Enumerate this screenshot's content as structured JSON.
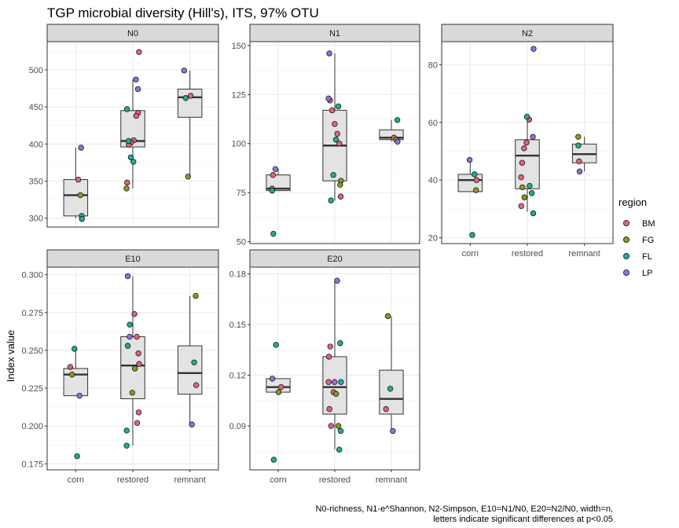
{
  "title": "TGP microbial diversity (Hill's), ITS, 97% OTU",
  "ylabel": "Index value",
  "caption_lines": [
    "N0-richness, N1-e^Shannon, N2-Simpson, E10=N1/N0, E20=N2/N0, width=n,",
    "letters indicate significant differences at p<0.05"
  ],
  "legend": {
    "title": "region",
    "entries": [
      {
        "label": "BM",
        "color": "#E2637A"
      },
      {
        "label": "FG",
        "color": "#8A9A1B"
      },
      {
        "label": "FL",
        "color": "#1FAE94"
      },
      {
        "label": "LP",
        "color": "#8B73E4"
      }
    ]
  },
  "chart_data": {
    "type": "boxplot",
    "categories": [
      "corn",
      "restored",
      "remnant"
    ],
    "panels": [
      {
        "name": "N0",
        "ylim": [
          288,
          538
        ],
        "yticks": [
          300,
          350,
          400,
          450,
          500
        ],
        "boxes": [
          {
            "category": "corn",
            "q1": 303,
            "median": 331,
            "q3": 352,
            "whisker_low": 300,
            "whisker_high": 395
          },
          {
            "category": "restored",
            "q1": 396,
            "median": 404,
            "q3": 445,
            "whisker_low": 340,
            "whisker_high": 487
          },
          {
            "category": "remnant",
            "q1": 436,
            "median": 463,
            "q3": 474,
            "whisker_low": 356,
            "whisker_high": 499
          }
        ],
        "points": [
          {
            "category": "corn",
            "region": "BM",
            "value": 352
          },
          {
            "category": "corn",
            "region": "FG",
            "value": 331
          },
          {
            "category": "corn",
            "region": "FL",
            "value": 303
          },
          {
            "category": "corn",
            "region": "FL",
            "value": 299
          },
          {
            "category": "corn",
            "region": "LP",
            "value": 395
          },
          {
            "category": "restored",
            "region": "BM",
            "value": 524
          },
          {
            "category": "restored",
            "region": "BM",
            "value": 442
          },
          {
            "category": "restored",
            "region": "BM",
            "value": 438
          },
          {
            "category": "restored",
            "region": "BM",
            "value": 405
          },
          {
            "category": "restored",
            "region": "BM",
            "value": 402
          },
          {
            "category": "restored",
            "region": "BM",
            "value": 399
          },
          {
            "category": "restored",
            "region": "BM",
            "value": 348
          },
          {
            "category": "restored",
            "region": "FG",
            "value": 340
          },
          {
            "category": "restored",
            "region": "FL",
            "value": 447
          },
          {
            "category": "restored",
            "region": "FL",
            "value": 404
          },
          {
            "category": "restored",
            "region": "FL",
            "value": 382
          },
          {
            "category": "restored",
            "region": "FL",
            "value": 376
          },
          {
            "category": "restored",
            "region": "LP",
            "value": 487
          },
          {
            "category": "restored",
            "region": "LP",
            "value": 474
          },
          {
            "category": "remnant",
            "region": "BM",
            "value": 465
          },
          {
            "category": "remnant",
            "region": "FG",
            "value": 356
          },
          {
            "category": "remnant",
            "region": "FL",
            "value": 462
          },
          {
            "category": "remnant",
            "region": "LP",
            "value": 499
          }
        ]
      },
      {
        "name": "N1",
        "ylim": [
          49,
          152
        ],
        "yticks": [
          50,
          75,
          100,
          125,
          150
        ],
        "boxes": [
          {
            "category": "corn",
            "q1": 76,
            "median": 77,
            "q3": 84,
            "whisker_low": 76,
            "whisker_high": 87
          },
          {
            "category": "restored",
            "q1": 81,
            "median": 99,
            "q3": 117,
            "whisker_low": 71,
            "whisker_high": 146
          },
          {
            "category": "remnant",
            "q1": 102,
            "median": 103,
            "q3": 107,
            "whisker_low": 101,
            "whisker_high": 112
          }
        ],
        "points": [
          {
            "category": "corn",
            "region": "BM",
            "value": 84
          },
          {
            "category": "corn",
            "region": "FG",
            "value": 77
          },
          {
            "category": "corn",
            "region": "FL",
            "value": 76
          },
          {
            "category": "corn",
            "region": "FL",
            "value": 54
          },
          {
            "category": "corn",
            "region": "LP",
            "value": 87
          },
          {
            "category": "restored",
            "region": "BM",
            "value": 122
          },
          {
            "category": "restored",
            "region": "BM",
            "value": 117
          },
          {
            "category": "restored",
            "region": "BM",
            "value": 110
          },
          {
            "category": "restored",
            "region": "BM",
            "value": 105
          },
          {
            "category": "restored",
            "region": "BM",
            "value": 100
          },
          {
            "category": "restored",
            "region": "BM",
            "value": 73
          },
          {
            "category": "restored",
            "region": "FG",
            "value": 81
          },
          {
            "category": "restored",
            "region": "FG",
            "value": 79
          },
          {
            "category": "restored",
            "region": "FL",
            "value": 119
          },
          {
            "category": "restored",
            "region": "FL",
            "value": 102
          },
          {
            "category": "restored",
            "region": "FL",
            "value": 84
          },
          {
            "category": "restored",
            "region": "FL",
            "value": 71
          },
          {
            "category": "restored",
            "region": "LP",
            "value": 146
          },
          {
            "category": "restored",
            "region": "LP",
            "value": 123
          },
          {
            "category": "remnant",
            "region": "BM",
            "value": 103
          },
          {
            "category": "remnant",
            "region": "FG",
            "value": 102
          },
          {
            "category": "remnant",
            "region": "FL",
            "value": 112
          },
          {
            "category": "remnant",
            "region": "LP",
            "value": 101
          }
        ]
      },
      {
        "name": "N2",
        "ylim": [
          18,
          88
        ],
        "yticks": [
          20,
          40,
          60,
          80
        ],
        "boxes": [
          {
            "category": "corn",
            "q1": 36,
            "median": 40,
            "q3": 42,
            "whisker_low": 36,
            "whisker_high": 47
          },
          {
            "category": "restored",
            "q1": 37,
            "median": 48.5,
            "q3": 54,
            "whisker_low": 29,
            "whisker_high": 62
          },
          {
            "category": "remnant",
            "q1": 46,
            "median": 49,
            "q3": 52.5,
            "whisker_low": 43,
            "whisker_high": 55
          }
        ],
        "points": [
          {
            "category": "corn",
            "region": "BM",
            "value": 40
          },
          {
            "category": "corn",
            "region": "FG",
            "value": 36.5
          },
          {
            "category": "corn",
            "region": "FL",
            "value": 42
          },
          {
            "category": "corn",
            "region": "FL",
            "value": 21
          },
          {
            "category": "corn",
            "region": "LP",
            "value": 47
          },
          {
            "category": "restored",
            "region": "BM",
            "value": 61
          },
          {
            "category": "restored",
            "region": "BM",
            "value": 53
          },
          {
            "category": "restored",
            "region": "BM",
            "value": 51
          },
          {
            "category": "restored",
            "region": "BM",
            "value": 46
          },
          {
            "category": "restored",
            "region": "BM",
            "value": 41
          },
          {
            "category": "restored",
            "region": "BM",
            "value": 31
          },
          {
            "category": "restored",
            "region": "FG",
            "value": 37.5
          },
          {
            "category": "restored",
            "region": "FG",
            "value": 34
          },
          {
            "category": "restored",
            "region": "FL",
            "value": 62
          },
          {
            "category": "restored",
            "region": "FL",
            "value": 38
          },
          {
            "category": "restored",
            "region": "FL",
            "value": 35.5
          },
          {
            "category": "restored",
            "region": "FL",
            "value": 28.5
          },
          {
            "category": "restored",
            "region": "LP",
            "value": 85.5
          },
          {
            "category": "restored",
            "region": "LP",
            "value": 55
          },
          {
            "category": "remnant",
            "region": "BM",
            "value": 46.5
          },
          {
            "category": "remnant",
            "region": "FG",
            "value": 55
          },
          {
            "category": "remnant",
            "region": "FL",
            "value": 52
          },
          {
            "category": "remnant",
            "region": "LP",
            "value": 43
          }
        ]
      },
      {
        "name": "E10",
        "ylim": [
          0.171,
          0.305
        ],
        "yticks": [
          0.175,
          0.2,
          0.225,
          0.25,
          0.275,
          0.3
        ],
        "tick_decimals": 3,
        "boxes": [
          {
            "category": "corn",
            "q1": 0.22,
            "median": 0.234,
            "q3": 0.238,
            "whisker_low": 0.22,
            "whisker_high": 0.251
          },
          {
            "category": "restored",
            "q1": 0.218,
            "median": 0.24,
            "q3": 0.259,
            "whisker_low": 0.187,
            "whisker_high": 0.299
          },
          {
            "category": "remnant",
            "q1": 0.221,
            "median": 0.235,
            "q3": 0.253,
            "whisker_low": 0.201,
            "whisker_high": 0.286
          }
        ],
        "points": [
          {
            "category": "corn",
            "region": "BM",
            "value": 0.239
          },
          {
            "category": "corn",
            "region": "FG",
            "value": 0.234
          },
          {
            "category": "corn",
            "region": "FL",
            "value": 0.251
          },
          {
            "category": "corn",
            "region": "FL",
            "value": 0.18
          },
          {
            "category": "corn",
            "region": "LP",
            "value": 0.22
          },
          {
            "category": "restored",
            "region": "BM",
            "value": 0.274
          },
          {
            "category": "restored",
            "region": "BM",
            "value": 0.259
          },
          {
            "category": "restored",
            "region": "BM",
            "value": 0.248
          },
          {
            "category": "restored",
            "region": "BM",
            "value": 0.241
          },
          {
            "category": "restored",
            "region": "BM",
            "value": 0.209
          },
          {
            "category": "restored",
            "region": "BM",
            "value": 0.202
          },
          {
            "category": "restored",
            "region": "FG",
            "value": 0.238
          },
          {
            "category": "restored",
            "region": "FG",
            "value": 0.222
          },
          {
            "category": "restored",
            "region": "FL",
            "value": 0.267
          },
          {
            "category": "restored",
            "region": "FL",
            "value": 0.253
          },
          {
            "category": "restored",
            "region": "FL",
            "value": 0.197
          },
          {
            "category": "restored",
            "region": "FL",
            "value": 0.187
          },
          {
            "category": "restored",
            "region": "LP",
            "value": 0.299
          },
          {
            "category": "restored",
            "region": "LP",
            "value": 0.259
          },
          {
            "category": "remnant",
            "region": "BM",
            "value": 0.227
          },
          {
            "category": "remnant",
            "region": "FG",
            "value": 0.286
          },
          {
            "category": "remnant",
            "region": "FL",
            "value": 0.242
          },
          {
            "category": "remnant",
            "region": "LP",
            "value": 0.201
          }
        ]
      },
      {
        "name": "E20",
        "ylim": [
          0.064,
          0.184
        ],
        "yticks": [
          0.09,
          0.12,
          0.15,
          0.18
        ],
        "tick_decimals": 2,
        "boxes": [
          {
            "category": "corn",
            "q1": 0.11,
            "median": 0.113,
            "q3": 0.118,
            "whisker_low": 0.11,
            "whisker_high": 0.118
          },
          {
            "category": "restored",
            "q1": 0.097,
            "median": 0.113,
            "q3": 0.131,
            "whisker_low": 0.076,
            "whisker_high": 0.176
          },
          {
            "category": "remnant",
            "q1": 0.097,
            "median": 0.106,
            "q3": 0.123,
            "whisker_low": 0.087,
            "whisker_high": 0.155
          }
        ],
        "points": [
          {
            "category": "corn",
            "region": "BM",
            "value": 0.113
          },
          {
            "category": "corn",
            "region": "FG",
            "value": 0.11
          },
          {
            "category": "corn",
            "region": "FL",
            "value": 0.138
          },
          {
            "category": "corn",
            "region": "FL",
            "value": 0.07
          },
          {
            "category": "corn",
            "region": "LP",
            "value": 0.118
          },
          {
            "category": "restored",
            "region": "BM",
            "value": 0.137
          },
          {
            "category": "restored",
            "region": "BM",
            "value": 0.131
          },
          {
            "category": "restored",
            "region": "BM",
            "value": 0.116
          },
          {
            "category": "restored",
            "region": "BM",
            "value": 0.1
          },
          {
            "category": "restored",
            "region": "BM",
            "value": 0.09
          },
          {
            "category": "restored",
            "region": "BM",
            "value": 0.11
          },
          {
            "category": "restored",
            "region": "FG",
            "value": 0.109
          },
          {
            "category": "restored",
            "region": "FG",
            "value": 0.09
          },
          {
            "category": "restored",
            "region": "FL",
            "value": 0.139
          },
          {
            "category": "restored",
            "region": "FL",
            "value": 0.116
          },
          {
            "category": "restored",
            "region": "FL",
            "value": 0.087
          },
          {
            "category": "restored",
            "region": "FL",
            "value": 0.076
          },
          {
            "category": "restored",
            "region": "LP",
            "value": 0.176
          },
          {
            "category": "restored",
            "region": "LP",
            "value": 0.116
          },
          {
            "category": "remnant",
            "region": "BM",
            "value": 0.1
          },
          {
            "category": "remnant",
            "region": "FG",
            "value": 0.155
          },
          {
            "category": "remnant",
            "region": "FL",
            "value": 0.112
          },
          {
            "category": "remnant",
            "region": "LP",
            "value": 0.087
          }
        ]
      }
    ]
  }
}
